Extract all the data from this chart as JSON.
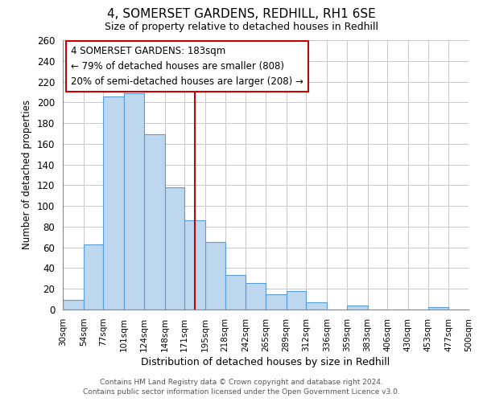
{
  "title": "4, SOMERSET GARDENS, REDHILL, RH1 6SE",
  "subtitle": "Size of property relative to detached houses in Redhill",
  "xlabel": "Distribution of detached houses by size in Redhill",
  "ylabel": "Number of detached properties",
  "bar_color": "#bdd7ee",
  "bar_edge_color": "#5b9bd5",
  "bins": [
    30,
    54,
    77,
    101,
    124,
    148,
    171,
    195,
    218,
    242,
    265,
    289,
    312,
    336,
    359,
    383,
    406,
    430,
    453,
    477,
    500
  ],
  "counts": [
    9,
    63,
    206,
    209,
    169,
    118,
    86,
    65,
    33,
    26,
    15,
    18,
    7,
    0,
    4,
    0,
    0,
    0,
    2,
    0
  ],
  "tick_labels": [
    "30sqm",
    "54sqm",
    "77sqm",
    "101sqm",
    "124sqm",
    "148sqm",
    "171sqm",
    "195sqm",
    "218sqm",
    "242sqm",
    "265sqm",
    "289sqm",
    "312sqm",
    "336sqm",
    "359sqm",
    "383sqm",
    "406sqm",
    "430sqm",
    "453sqm",
    "477sqm",
    "500sqm"
  ],
  "property_size": 183,
  "vline_color": "#cc0000",
  "annotation_title": "4 SOMERSET GARDENS: 183sqm",
  "annotation_line1": "← 79% of detached houses are smaller (808)",
  "annotation_line2": "20% of semi-detached houses are larger (208) →",
  "annotation_box_color": "#ffffff",
  "annotation_box_edge": "#cc0000",
  "ylim": [
    0,
    260
  ],
  "yticks": [
    0,
    20,
    40,
    60,
    80,
    100,
    120,
    140,
    160,
    180,
    200,
    220,
    240,
    260
  ],
  "footer_line1": "Contains HM Land Registry data © Crown copyright and database right 2024.",
  "footer_line2": "Contains public sector information licensed under the Open Government Licence v3.0.",
  "bg_color": "#ffffff",
  "grid_color": "#c8c8c8"
}
